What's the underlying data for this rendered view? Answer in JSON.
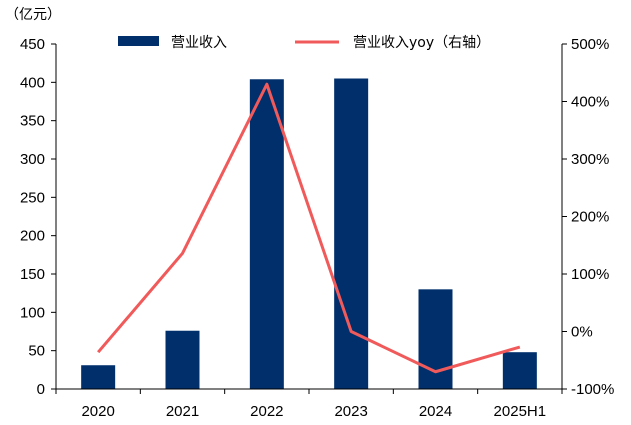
{
  "chart_data": {
    "type": "bar",
    "left_unit": "（亿元）",
    "categories": [
      "2020",
      "2021",
      "2022",
      "2023",
      "2024",
      "2025H1"
    ],
    "series": [
      {
        "name": "营业收入",
        "type": "bar",
        "axis": "left",
        "color": "#002F6C",
        "values": [
          31,
          76,
          404,
          405,
          130,
          48
        ]
      },
      {
        "name": "营业收入yoy（右轴）",
        "type": "line",
        "axis": "right",
        "color": "#F05A5A",
        "values": [
          -36,
          136,
          430,
          0,
          -70,
          -27
        ]
      }
    ],
    "y_left": {
      "min": 0,
      "max": 450,
      "step": 50,
      "ticks": [
        "0",
        "50",
        "100",
        "150",
        "200",
        "250",
        "300",
        "350",
        "400",
        "450"
      ]
    },
    "y_right": {
      "min": -100,
      "max": 500,
      "step": 100,
      "ticks": [
        "-100%",
        "0%",
        "100%",
        "200%",
        "300%",
        "400%",
        "500%"
      ]
    },
    "legend_position": "top",
    "grid": false
  }
}
